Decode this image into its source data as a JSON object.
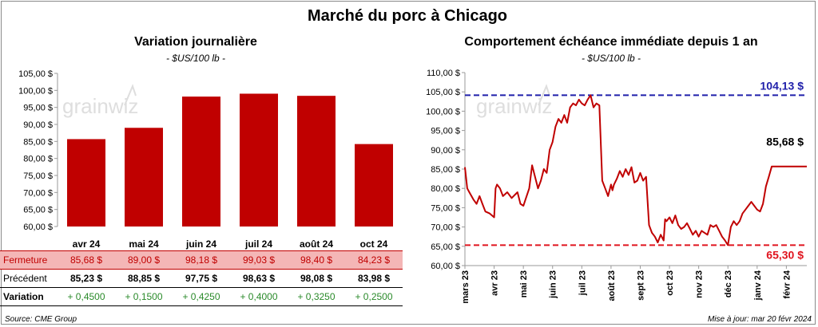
{
  "page": {
    "title": "Marché du porc à Chicago",
    "source": "Source: CME Group",
    "updated": "Mise à jour: mar 20 févr 2024",
    "watermark": "grainwiz"
  },
  "table": {
    "row_labels": {
      "close": "Fermeture",
      "previous": "Précédent",
      "variation": "Variation"
    },
    "closes": [
      "85,68 $",
      "89,00 $",
      "98,18 $",
      "99,03 $",
      "98,40 $",
      "84,23 $"
    ],
    "previous": [
      "85,23 $",
      "88,85 $",
      "97,75 $",
      "98,63 $",
      "98,08 $",
      "83,98 $"
    ],
    "variation": [
      "+ 0,4500",
      "+ 0,1500",
      "+ 0,4250",
      "+ 0,4000",
      "+ 0,3250",
      "+ 0,2500"
    ]
  },
  "colors": {
    "bar": "#c00000",
    "line": "#c00000",
    "high": "#1f1faa",
    "low": "#e0141e",
    "variation": "#2a8a2a",
    "closeRowBg": "#f4b6b6"
  },
  "chart_data": [
    {
      "type": "bar",
      "title": "Variation journalière",
      "subtitle": "- $US/100 lb -",
      "categories": [
        "avr 24",
        "mai 24",
        "juin 24",
        "juil 24",
        "août 24",
        "oct 24"
      ],
      "values": [
        85.68,
        89.0,
        98.18,
        99.03,
        98.4,
        84.23
      ],
      "ylim": [
        60,
        105
      ],
      "ytick_labels": [
        "105,00 $",
        "100,00 $",
        "95,00 $",
        "90,00 $",
        "85,00 $",
        "80,00 $",
        "75,00 $",
        "70,00 $",
        "65,00 $",
        "60,00 $"
      ]
    },
    {
      "type": "line",
      "title": "Comportement échéance immédiate depuis 1 an",
      "subtitle": "- $US/100 lb -",
      "ylim": [
        60,
        110
      ],
      "ytick_labels": [
        "110,00 $",
        "105,00 $",
        "100,00 $",
        "95,00 $",
        "90,00 $",
        "85,00 $",
        "80,00 $",
        "75,00 $",
        "70,00 $",
        "65,00 $",
        "60,00 $"
      ],
      "xtick_labels": [
        "mars 23",
        "avr 23",
        "mai 23",
        "juin 23",
        "juil 23",
        "août 23",
        "sept 23",
        "oct 23",
        "nov 23",
        "déc 23",
        "janv 24",
        "févr 24"
      ],
      "x_range": [
        0,
        11.7
      ],
      "series": [
        {
          "name": "Échéance immédiate",
          "x": [
            0,
            0.08,
            0.15,
            0.3,
            0.4,
            0.5,
            0.6,
            0.7,
            0.85,
            1.0,
            1.05,
            1.1,
            1.2,
            1.3,
            1.45,
            1.6,
            1.8,
            1.9,
            2.0,
            2.2,
            2.3,
            2.5,
            2.6,
            2.7,
            2.8,
            2.9,
            3.0,
            3.1,
            3.2,
            3.3,
            3.4,
            3.5,
            3.6,
            3.7,
            3.8,
            3.9,
            4.0,
            4.1,
            4.2,
            4.3,
            4.4,
            4.5,
            4.6,
            4.7,
            4.8,
            4.9,
            5.0,
            5.05,
            5.1,
            5.2,
            5.3,
            5.4,
            5.5,
            5.6,
            5.7,
            5.8,
            5.9,
            6.0,
            6.1,
            6.2,
            6.3,
            6.4,
            6.5,
            6.6,
            6.7,
            6.8,
            6.85,
            6.9,
            7.0,
            7.1,
            7.2,
            7.3,
            7.4,
            7.5,
            7.6,
            7.7,
            7.8,
            7.9,
            8.0,
            8.1,
            8.2,
            8.3,
            8.4,
            8.5,
            8.6,
            8.7,
            8.8,
            8.9,
            9.0,
            9.1,
            9.2,
            9.3,
            9.4,
            9.5,
            9.6,
            9.7,
            9.8,
            9.9,
            10.0,
            10.1,
            10.2,
            10.3,
            10.4,
            10.5,
            10.6,
            10.7,
            10.8,
            10.9,
            11.0,
            11.1,
            11.2,
            11.3,
            11.4,
            11.5,
            11.55,
            11.6,
            11.7
          ],
          "values": [
            85.5,
            80,
            79,
            77,
            76,
            78,
            76,
            74,
            73.5,
            72.5,
            80,
            81,
            80,
            78,
            79,
            77.5,
            79,
            76,
            75.5,
            80,
            86,
            80,
            82,
            85,
            84,
            90,
            92,
            96,
            98,
            97,
            99,
            97,
            101,
            102,
            101.5,
            103,
            102,
            101.5,
            103,
            104.13,
            101,
            102,
            101.5,
            82,
            80,
            78,
            81,
            79.5,
            81,
            82.5,
            84.5,
            83,
            85,
            83.5,
            85.5,
            81.5,
            82,
            84,
            82,
            83,
            70.5,
            68.5,
            67.5,
            66,
            68,
            66.5,
            72,
            71.5,
            72.5,
            71,
            73,
            70.5,
            69.5,
            70,
            71,
            69.5,
            68,
            69,
            67.5,
            69,
            68.5,
            68,
            70.5,
            70,
            70.5,
            69,
            67.5,
            66.5,
            65.3,
            70,
            71.5,
            70.5,
            71.5,
            73.5,
            74.5,
            75.5,
            76.5,
            75.5,
            74.5,
            74,
            76,
            80.5,
            83,
            85.68,
            85.68,
            85.68,
            85.68,
            85.68,
            85.68,
            85.68,
            85.68,
            85.68,
            85.68,
            85.68,
            85.68,
            85.68,
            85.68
          ]
        }
      ],
      "reference_lines": [
        {
          "name": "high",
          "value": 104.13,
          "label": "104,13 $"
        },
        {
          "name": "low",
          "value": 65.3,
          "label": "65,30 $"
        }
      ],
      "last_value": 85.68,
      "last_label": "85,68 $"
    }
  ]
}
